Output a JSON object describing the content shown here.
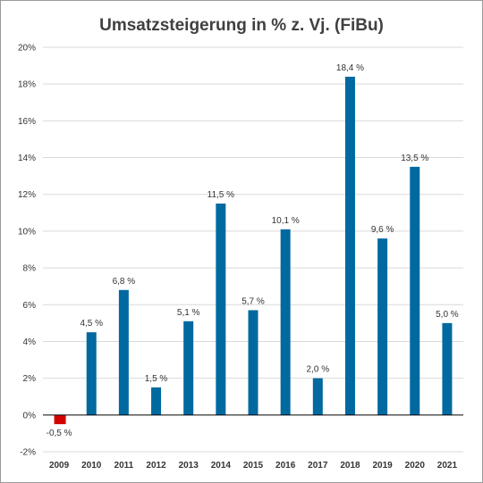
{
  "chart_data": {
    "type": "bar",
    "title": "Umsatzsteigerung in % z. Vj. (FiBu)",
    "categories": [
      "2009",
      "2010",
      "2011",
      "2012",
      "2013",
      "2014",
      "2015",
      "2016",
      "2017",
      "2018",
      "2019",
      "2020",
      "2021"
    ],
    "values": [
      -0.5,
      4.5,
      6.8,
      1.5,
      5.1,
      11.5,
      5.7,
      10.1,
      2.0,
      18.4,
      9.6,
      13.5,
      5.0
    ],
    "data_labels": [
      "-0,5 %",
      "4,5 %",
      "6,8 %",
      "1,5 %",
      "5,1 %",
      "11,5 %",
      "5,7 %",
      "10,1 %",
      "2,0 %",
      "18,4 %",
      "9,6 %",
      "13,5 %",
      "5,0 %"
    ],
    "ylim": [
      -2,
      20
    ],
    "yticks": [
      -2,
      0,
      2,
      4,
      6,
      8,
      10,
      12,
      14,
      16,
      18,
      20
    ],
    "ytick_labels": [
      "-2%",
      "0%",
      "2%",
      "4%",
      "6%",
      "8%",
      "10%",
      "12%",
      "14%",
      "16%",
      "18%",
      "20%"
    ],
    "xlabel": "",
    "ylabel": "",
    "grid": true,
    "legend": "none",
    "colors": {
      "positive": "#0069a0",
      "negative": "#d40000",
      "negative_label": "#c00000",
      "grid": "#d9d9d9",
      "axis": "#000000"
    }
  }
}
